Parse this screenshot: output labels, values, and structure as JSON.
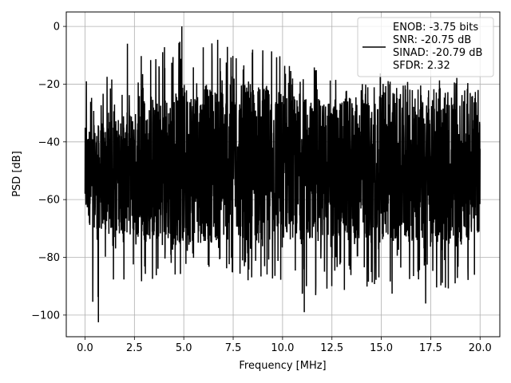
{
  "chart_data": {
    "type": "line",
    "title": "",
    "xlabel": "Frequency [MHz]",
    "ylabel": "PSD [dB]",
    "xlim": [
      -0.95,
      21.0
    ],
    "ylim": [
      -107.5,
      5
    ],
    "xticks": [
      0.0,
      2.5,
      5.0,
      7.5,
      10.0,
      12.5,
      15.0,
      17.5,
      20.0
    ],
    "xtick_labels": [
      "0.0",
      "2.5",
      "5.0",
      "7.5",
      "10.0",
      "12.5",
      "15.0",
      "17.5",
      "20.0"
    ],
    "yticks": [
      0,
      -20,
      -40,
      -60,
      -80,
      -100
    ],
    "ytick_labels": [
      "0",
      "−20",
      "−40",
      "−60",
      "−80",
      "−100"
    ],
    "grid": true,
    "legend_position": "top-right",
    "legend_entries": [
      "ENOB: -3.75 bits",
      "SNR: -20.75 dB",
      "SINAD: -20.79 dB",
      "SFDR: 2.32"
    ],
    "series": [
      {
        "color": "#000000",
        "description": "dense noise-floor spectrum, oscillating rapidly; x in MHz, y in dB",
        "x_range": [
          0.0,
          20.0
        ],
        "envelope_x": [
          0,
          1,
          2,
          3,
          4,
          5,
          6,
          7,
          8,
          9,
          10,
          11,
          12,
          13,
          14,
          15,
          16,
          17,
          18,
          19,
          20
        ],
        "envelope_upper": [
          -20,
          -18,
          -12,
          -8,
          -6,
          0,
          -3,
          -5,
          -6,
          -4,
          -10,
          -12,
          -14,
          -16,
          -18,
          -15,
          -18,
          -20,
          -17,
          -18,
          -22
        ],
        "envelope_lower": [
          -98,
          -96,
          -92,
          -90,
          -88,
          -86,
          -86,
          -86,
          -88,
          -90,
          -94,
          -99,
          -92,
          -92,
          -90,
          -92,
          -94,
          -96,
          -92,
          -90,
          -85
        ],
        "band_upper": [
          -35,
          -33,
          -30,
          -28,
          -24,
          -20,
          -20,
          -20,
          -20,
          -20,
          -22,
          -25,
          -25,
          -25,
          -24,
          -24,
          -25,
          -25,
          -25,
          -25,
          -30
        ],
        "band_lower": [
          -68,
          -72,
          -72,
          -74,
          -76,
          -76,
          -75,
          -75,
          -74,
          -74,
          -74,
          -74,
          -74,
          -74,
          -75,
          -75,
          -75,
          -75,
          -75,
          -76,
          -72
        ],
        "notable_points": [
          {
            "x": 0.07,
            "y": -19
          },
          {
            "x": 0.68,
            "y": -102.5
          },
          {
            "x": 4.9,
            "y": 0
          },
          {
            "x": 2.15,
            "y": -6
          },
          {
            "x": 11.1,
            "y": -99
          },
          {
            "x": 17.25,
            "y": -96
          }
        ]
      }
    ]
  }
}
